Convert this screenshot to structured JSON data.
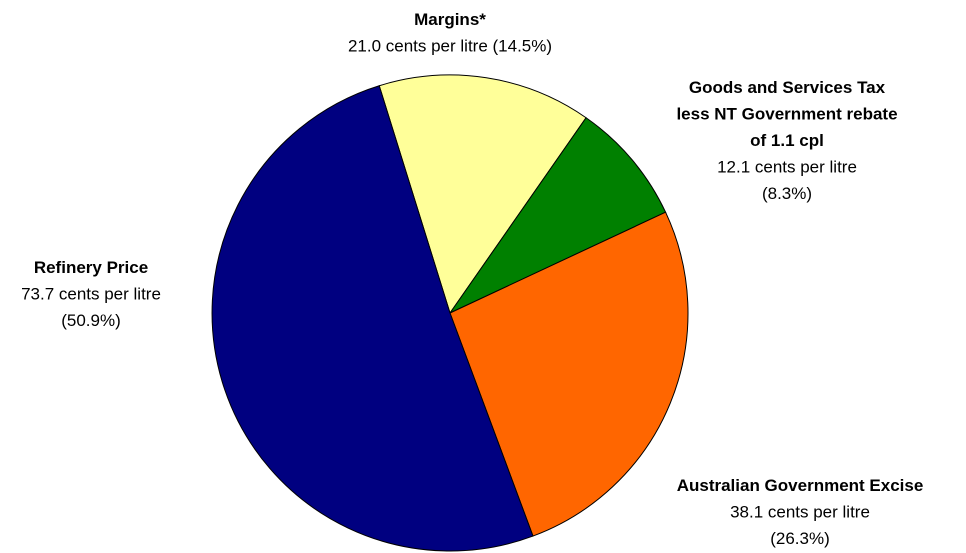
{
  "chart_data": {
    "type": "pie",
    "title": "",
    "slices": [
      {
        "category": "Margins*",
        "category_lines": [
          "Margins*"
        ],
        "value": 21.0,
        "value_text": "21.0 cents per litre (14.5%)",
        "value_lines": [
          "21.0 cents per litre (14.5%)"
        ],
        "percent": 14.5,
        "color": "#ffff99"
      },
      {
        "category": "Goods and Services Tax less NT Government rebate of 1.1 cpl",
        "category_lines": [
          "Goods and Services Tax",
          "less NT Government rebate",
          "of 1.1 cpl"
        ],
        "value": 12.1,
        "value_text": "12.1 cents per litre (8.3%)",
        "value_lines": [
          "12.1 cents per litre",
          "(8.3%)"
        ],
        "percent": 8.3,
        "color": "#008000"
      },
      {
        "category": "Australian Government Excise",
        "category_lines": [
          "Australian Government Excise"
        ],
        "value": 38.1,
        "value_text": "38.1 cents per litre (26.3%)",
        "value_lines": [
          "38.1 cents per litre",
          "(26.3%)"
        ],
        "percent": 26.3,
        "color": "#ff6600"
      },
      {
        "category": "Refinery Price",
        "category_lines": [
          "Refinery Price"
        ],
        "value": 73.7,
        "value_text": "73.7 cents per litre (50.9%)",
        "value_lines": [
          "73.7 cents per litre",
          "(50.9%)"
        ],
        "percent": 50.9,
        "color": "#000080"
      }
    ],
    "stroke_color": "#000000"
  }
}
